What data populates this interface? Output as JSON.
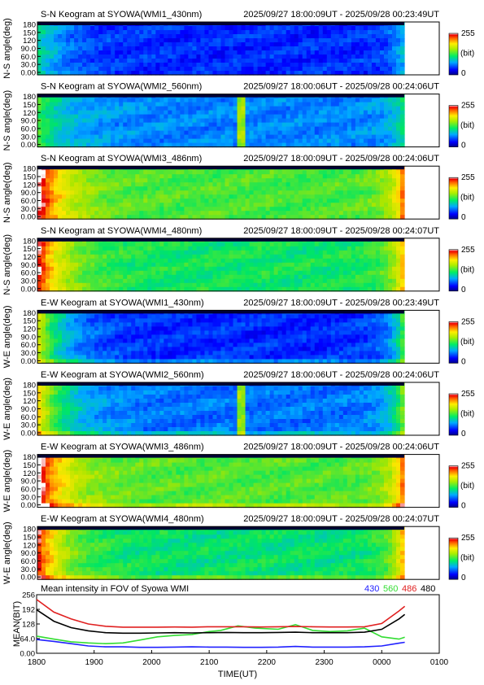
{
  "keograms": [
    {
      "title_left": "S-N Keogram at SYOWA(WMI1_430nm)",
      "title_right": "2025/09/27 18:00:09UT - 2025/09/28 00:23:49UT",
      "ylabel": "N-S angle(deg)",
      "yticks": [
        "180",
        "150",
        "120",
        "90.0",
        "60.0",
        "30.0",
        "0.00"
      ],
      "cbar": {
        "top": "255",
        "mid": "(bit)",
        "bottom": "0"
      },
      "base": 0.16,
      "fill": 0.2
    },
    {
      "title_left": "S-N Keogram at SYOWA(WMI2_560nm)",
      "title_right": "2025/09/27 18:00:06UT - 2025/09/28 00:24:06UT",
      "ylabel": "N-S angle(deg)",
      "yticks": [
        "180",
        "150",
        "120",
        "90.0",
        "60.0",
        "30.0",
        "0.00"
      ],
      "cbar": {
        "top": "255",
        "mid": "(bit)",
        "bottom": "0"
      },
      "base": 0.26,
      "fill": 0.41
    },
    {
      "title_left": "S-N Keogram at SYOWA(WMI3_486nm)",
      "title_right": "2025/09/27 18:00:09UT - 2025/09/28 00:24:06UT",
      "ylabel": "N-S angle(deg)",
      "yticks": [
        "180",
        "150",
        "120",
        "90.0",
        "60.0",
        "30.0",
        "0.00"
      ],
      "cbar": {
        "top": "255",
        "mid": "(bit)",
        "bottom": "0"
      },
      "base": 0.52,
      "fill": 0.5
    },
    {
      "title_left": "S-N Keogram at SYOWA(WMI4_480nm)",
      "title_right": "2025/09/27 18:00:09UT - 2025/09/28 00:24:07UT",
      "ylabel": "N-S angle(deg)",
      "yticks": [
        "180",
        "150",
        "120",
        "90.0",
        "60.0",
        "30.0",
        "0.00"
      ],
      "cbar": {
        "top": "255",
        "mid": "(bit)",
        "bottom": "0"
      },
      "base": 0.46,
      "fill": 0.38
    },
    {
      "title_left": "E-W Keogram at SYOWA(WMI1_430nm)",
      "title_right": "2025/09/27 18:00:09UT - 2025/09/28 00:23:49UT",
      "ylabel": "W-E angle(deg)",
      "yticks": [
        "180",
        "150",
        "120",
        "90.0",
        "60.0",
        "30.0",
        "0.00"
      ],
      "cbar": {
        "top": "255",
        "mid": "(bit)",
        "bottom": "0"
      },
      "base": 0.16,
      "fill": 0.2
    },
    {
      "title_left": "E-W Keogram at SYOWA(WMI2_560nm)",
      "title_right": "2025/09/27 18:00:06UT - 2025/09/28 00:24:06UT",
      "ylabel": "W-E angle(deg)",
      "yticks": [
        "180",
        "150",
        "120",
        "90.0",
        "60.0",
        "30.0",
        "0.00"
      ],
      "cbar": {
        "top": "255",
        "mid": "(bit)",
        "bottom": "0"
      },
      "base": 0.24,
      "fill": 0.41
    },
    {
      "title_left": "E-W Keogram at SYOWA(WMI3_486nm)",
      "title_right": "2025/09/27 18:00:09UT - 2025/09/28 00:24:06UT",
      "ylabel": "W-E angle(deg)",
      "yticks": [
        "180",
        "150",
        "120",
        "90.0",
        "60.0",
        "30.0",
        "0.00"
      ],
      "cbar": {
        "top": "255",
        "mid": "(bit)",
        "bottom": "0"
      },
      "base": 0.53,
      "fill": 0.5
    },
    {
      "title_left": "E-W Keogram at SYOWA(WMI4_480nm)",
      "title_right": "2025/09/27 18:00:09UT - 2025/09/28 00:24:07UT",
      "ylabel": "W-E angle(deg)",
      "yticks": [
        "180",
        "150",
        "120",
        "90.0",
        "60.0",
        "30.0",
        "0.00"
      ],
      "cbar": {
        "top": "255",
        "mid": "(bit)",
        "bottom": "0"
      },
      "base": 0.44,
      "fill": 0.38
    }
  ],
  "colors": {
    "blue": "#2020ff",
    "green": "#33dd33",
    "red": "#e02020",
    "black": "#000000"
  },
  "chart_data": {
    "type": "line",
    "title": "Mean intensity in FOV of Syowa WMI",
    "xlabel": "TIME(UT)",
    "ylabel": "MEAN(BIT)",
    "xticks": [
      "1800",
      "1900",
      "2000",
      "2100",
      "2200",
      "2300",
      "0000",
      "0100"
    ],
    "yticks": [
      "256",
      "192",
      "128",
      "64.0",
      "0.00"
    ],
    "xlim": [
      0,
      7
    ],
    "ylim": [
      0,
      256
    ],
    "x_unit": "hours after 1800 UT",
    "series": [
      {
        "name": "430",
        "color": "#2020ff",
        "x": [
          0,
          0.3,
          0.6,
          0.9,
          1.2,
          1.5,
          1.8,
          2.1,
          2.4,
          2.7,
          3.0,
          3.3,
          3.6,
          3.9,
          4.2,
          4.5,
          4.8,
          5.1,
          5.4,
          5.7,
          6.0,
          6.3,
          6.4
        ],
        "values": [
          60,
          52,
          42,
          32,
          28,
          28,
          26,
          26,
          27,
          28,
          27,
          27,
          26,
          26,
          27,
          30,
          27,
          27,
          27,
          28,
          32,
          44,
          48
        ]
      },
      {
        "name": "560",
        "color": "#33dd33",
        "x": [
          0,
          0.3,
          0.6,
          0.9,
          1.2,
          1.5,
          1.8,
          2.1,
          2.4,
          2.7,
          3.0,
          3.2,
          3.5,
          3.8,
          4.2,
          4.5,
          4.8,
          5.1,
          5.4,
          5.7,
          6.0,
          6.3,
          6.4
        ],
        "values": [
          75,
          62,
          50,
          45,
          42,
          45,
          58,
          72,
          78,
          82,
          95,
          100,
          120,
          110,
          105,
          125,
          100,
          95,
          98,
          110,
          72,
          62,
          70
        ]
      },
      {
        "name": "486",
        "color": "#e02020",
        "x": [
          0,
          0.3,
          0.6,
          0.9,
          1.2,
          1.5,
          1.8,
          2.1,
          2.4,
          2.7,
          3.0,
          3.3,
          3.6,
          3.9,
          4.2,
          4.5,
          4.8,
          5.1,
          5.4,
          5.7,
          6.0,
          6.3,
          6.4
        ],
        "values": [
          235,
          180,
          150,
          128,
          118,
          114,
          114,
          114,
          115,
          114,
          116,
          116,
          116,
          115,
          116,
          117,
          116,
          115,
          115,
          116,
          130,
          185,
          205
        ]
      },
      {
        "name": "480",
        "color": "#000000",
        "x": [
          0,
          0.3,
          0.6,
          0.9,
          1.2,
          1.5,
          1.8,
          2.1,
          2.4,
          2.7,
          3.0,
          3.3,
          3.6,
          3.9,
          4.2,
          4.5,
          4.8,
          5.1,
          5.4,
          5.7,
          6.0,
          6.3,
          6.4
        ],
        "values": [
          190,
          140,
          112,
          98,
          90,
          88,
          88,
          89,
          90,
          89,
          90,
          91,
          90,
          90,
          91,
          92,
          90,
          90,
          90,
          92,
          105,
          150,
          170
        ]
      }
    ]
  }
}
